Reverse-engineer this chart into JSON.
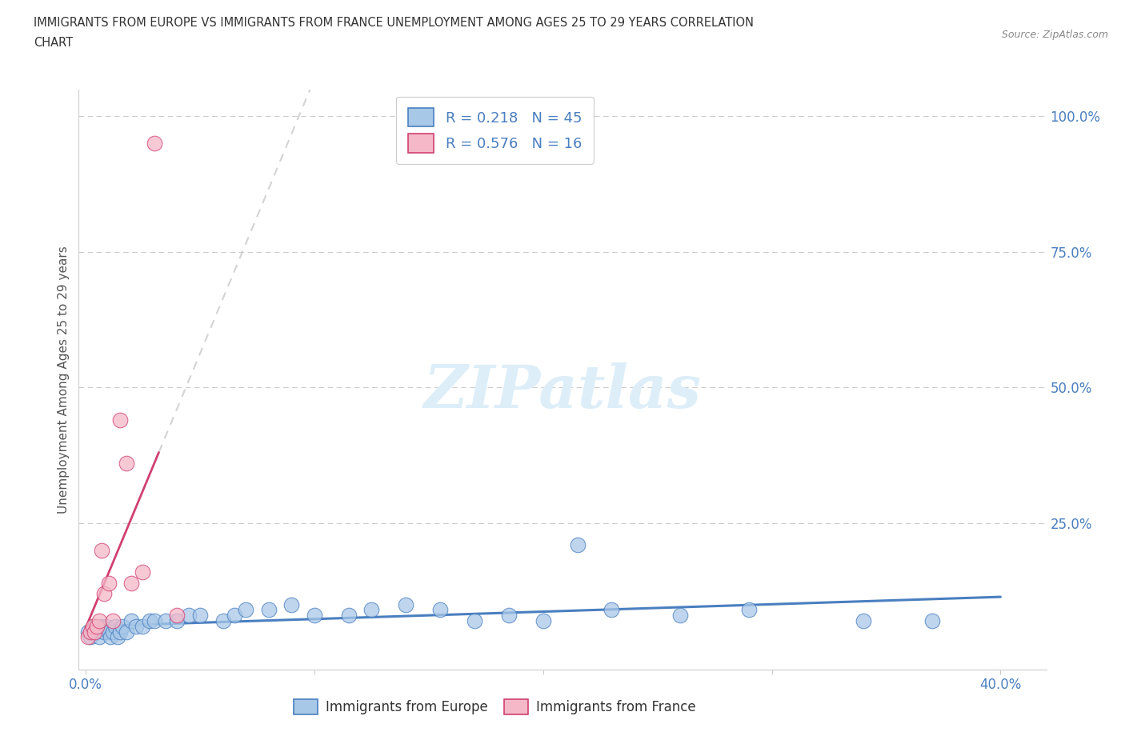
{
  "title_line1": "IMMIGRANTS FROM EUROPE VS IMMIGRANTS FROM FRANCE UNEMPLOYMENT AMONG AGES 25 TO 29 YEARS CORRELATION",
  "title_line2": "CHART",
  "source": "Source: ZipAtlas.com",
  "ylabel": "Unemployment Among Ages 25 to 29 years",
  "r_europe": 0.218,
  "n_europe": 45,
  "r_france": 0.576,
  "n_france": 16,
  "color_europe": "#a8c8e8",
  "color_france": "#f5b8c8",
  "color_europe_line": "#4a7fc0",
  "color_france_line": "#d04070",
  "color_trendline_ext": "#c8c8c8",
  "background_color": "#ffffff",
  "xlim": [
    -0.003,
    0.42
  ],
  "ylim": [
    -0.02,
    1.05
  ],
  "europe_x": [
    0.001,
    0.002,
    0.003,
    0.004,
    0.005,
    0.006,
    0.007,
    0.008,
    0.009,
    0.01,
    0.011,
    0.012,
    0.013,
    0.014,
    0.015,
    0.016,
    0.018,
    0.02,
    0.022,
    0.025,
    0.028,
    0.03,
    0.035,
    0.04,
    0.045,
    0.05,
    0.06,
    0.065,
    0.07,
    0.08,
    0.09,
    0.1,
    0.115,
    0.125,
    0.14,
    0.155,
    0.17,
    0.185,
    0.2,
    0.215,
    0.23,
    0.26,
    0.29,
    0.34,
    0.37
  ],
  "europe_y": [
    0.05,
    0.04,
    0.05,
    0.06,
    0.05,
    0.04,
    0.06,
    0.05,
    0.06,
    0.05,
    0.04,
    0.05,
    0.06,
    0.04,
    0.05,
    0.06,
    0.05,
    0.07,
    0.06,
    0.06,
    0.07,
    0.07,
    0.07,
    0.07,
    0.08,
    0.08,
    0.07,
    0.08,
    0.09,
    0.09,
    0.1,
    0.08,
    0.08,
    0.09,
    0.1,
    0.09,
    0.07,
    0.08,
    0.07,
    0.21,
    0.09,
    0.08,
    0.09,
    0.07,
    0.07
  ],
  "france_x": [
    0.001,
    0.002,
    0.003,
    0.004,
    0.005,
    0.006,
    0.007,
    0.008,
    0.01,
    0.012,
    0.015,
    0.018,
    0.02,
    0.025,
    0.03,
    0.04
  ],
  "france_y": [
    0.04,
    0.05,
    0.06,
    0.05,
    0.06,
    0.07,
    0.2,
    0.12,
    0.14,
    0.07,
    0.44,
    0.36,
    0.14,
    0.16,
    0.95,
    0.08
  ]
}
